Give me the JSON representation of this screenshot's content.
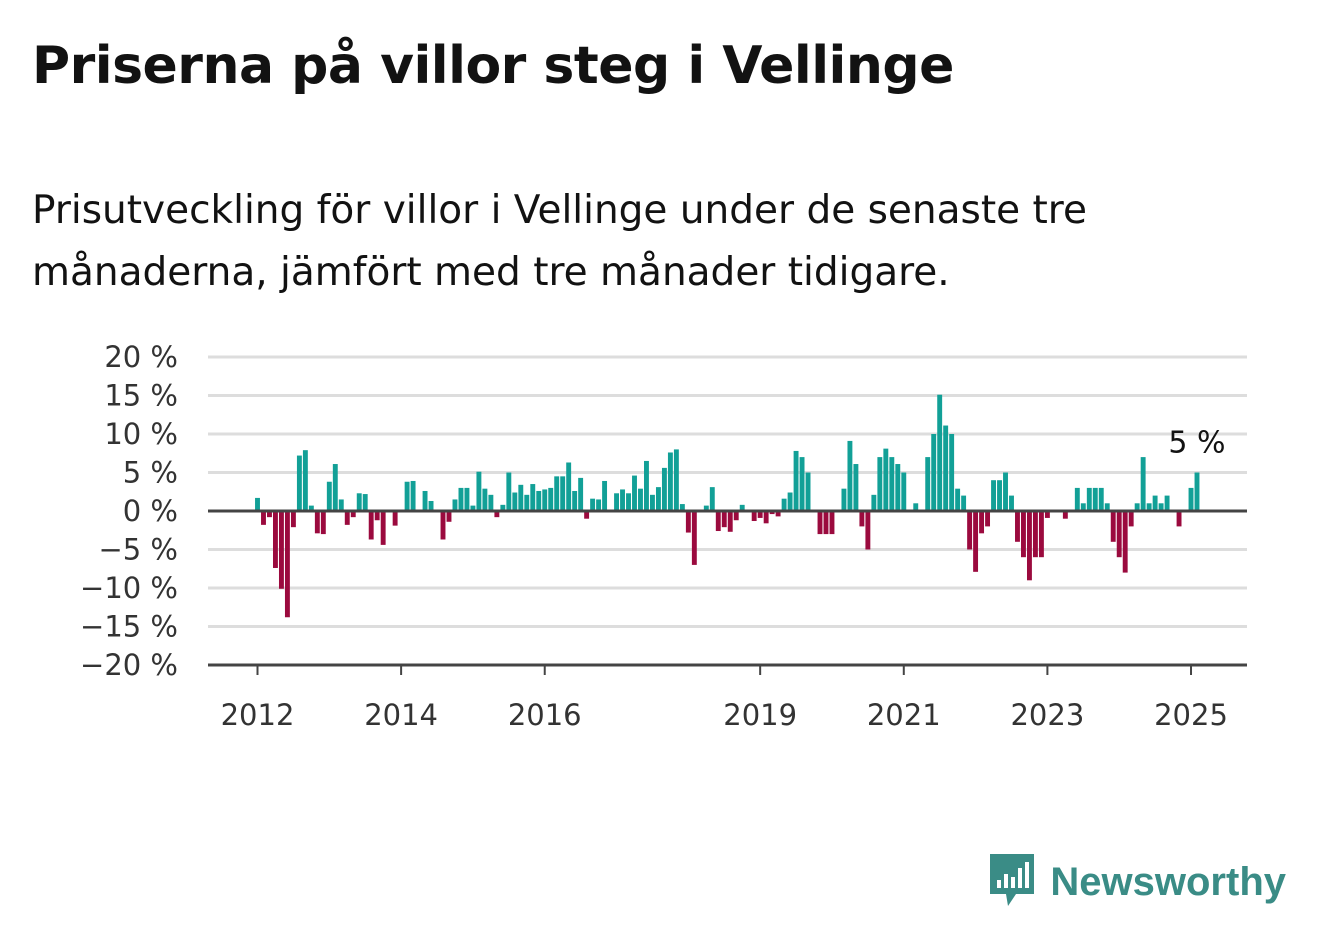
{
  "title": "Priserna på villor steg i Vellinge",
  "subtitle": "Prisutveckling för villor i Vellinge under de senaste tre månaderna, jämfört med tre månader tidigare.",
  "brand": {
    "name": "Newsworthy",
    "color": "#3a8c86",
    "icon": "newsworthy-logo-icon"
  },
  "colors": {
    "positive": "#12a097",
    "negative": "#9b0a3e",
    "grid": "#dddddd",
    "axis": "#444444"
  },
  "chart_data": {
    "type": "bar",
    "y_unit": "%",
    "ylim": [
      -20,
      20
    ],
    "y_ticks": [
      "20 %",
      "15 %",
      "10 %",
      "5 %",
      "0 %",
      "−5 %",
      "−10 %",
      "−15 %",
      "−20 %"
    ],
    "y_tick_values": [
      20,
      15,
      10,
      5,
      0,
      -5,
      -10,
      -15,
      -20
    ],
    "x_ticks": [
      "2012",
      "2014",
      "2016",
      "2019",
      "2021",
      "2023",
      "2025"
    ],
    "x_tick_years": [
      2012,
      2014,
      2016,
      2019,
      2021,
      2023,
      2025
    ],
    "x_start": "2011-11",
    "grid": true,
    "last_value_label": "5 %",
    "values": [
      0,
      0,
      1.7,
      -1.8,
      -0.8,
      -7.4,
      -10.1,
      -13.8,
      -2.1,
      7.2,
      7.9,
      0.7,
      -2.9,
      -3.0,
      3.8,
      6.1,
      1.5,
      -1.8,
      -0.8,
      2.3,
      2.2,
      -3.7,
      -1.2,
      -4.4,
      0,
      -1.9,
      0,
      3.8,
      3.9,
      0,
      2.6,
      1.3,
      0,
      -3.7,
      -1.4,
      1.5,
      3.0,
      3.0,
      0.7,
      5.1,
      2.9,
      2.1,
      -0.8,
      0.8,
      5.0,
      2.4,
      3.4,
      2.1,
      3.5,
      2.6,
      2.8,
      3.0,
      4.5,
      4.5,
      6.3,
      2.6,
      4.3,
      -1.0,
      1.6,
      1.5,
      3.9,
      0,
      2.3,
      2.8,
      2.3,
      4.6,
      2.9,
      6.5,
      2.1,
      3.1,
      5.6,
      7.6,
      8.0,
      0.9,
      -2.8,
      -7.0,
      0,
      0.7,
      3.1,
      -2.6,
      -2.1,
      -2.7,
      -1.2,
      0.8,
      0,
      -1.3,
      -0.9,
      -1.6,
      -0.4,
      -0.7,
      1.6,
      2.4,
      7.8,
      7.0,
      5.0,
      0,
      -3.0,
      -3.0,
      -3.0,
      0,
      2.9,
      9.1,
      6.1,
      -2.0,
      -5.0,
      2.1,
      7.0,
      8.1,
      7.0,
      6.1,
      5.0,
      0,
      1.0,
      0,
      7.0,
      10.0,
      15.1,
      11.1,
      10.0,
      2.9,
      2.0,
      -5.0,
      -7.9,
      -2.9,
      -2.0,
      4.0,
      4.0,
      5.0,
      2.0,
      -4.0,
      -6.0,
      -9.0,
      -6.0,
      -6.0,
      -0.9,
      0,
      0,
      -1.0,
      0,
      3.0,
      1.0,
      3.0,
      3.0,
      3.0,
      1.0,
      -4.0,
      -6.0,
      -8.0,
      -2.0,
      1.0,
      7.0,
      1.0,
      2.0,
      1.0,
      2.0,
      0,
      -2.0,
      0,
      3.0,
      5.0
    ]
  }
}
